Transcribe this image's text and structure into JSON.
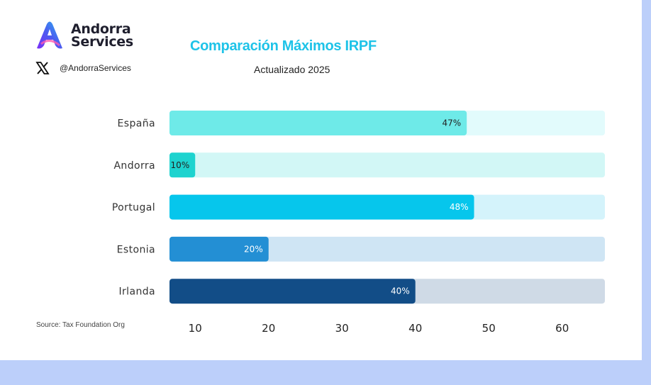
{
  "brand": {
    "line1": "Andorra",
    "line2": "Services",
    "handle": "@AndorraServices"
  },
  "source": "Source: Tax Foundation Org",
  "chart_data": {
    "type": "bar",
    "orientation": "horizontal",
    "title": "Comparación Máximos IRPF",
    "subtitle": "Actualizado 2025",
    "categories": [
      "España",
      "Andorra",
      "Portugal",
      "Estonia",
      "Irlanda"
    ],
    "values": [
      47,
      10,
      48,
      20,
      40
    ],
    "value_labels": [
      "47%",
      "10%",
      "48%",
      "20%",
      "40%"
    ],
    "x_ticks": [
      10,
      20,
      30,
      40,
      50,
      60
    ],
    "bar_colors": [
      "#6eeae8",
      "#1ed3cf",
      "#06c6ec",
      "#238fd4",
      "#124d87"
    ],
    "track_colors": [
      "#e2fbfc",
      "#d2f7f6",
      "#d4f3fb",
      "#cfe5f4",
      "#cfdae6"
    ],
    "label_colors": [
      "#222222",
      "#222222",
      "#ffffff",
      "#ffffff",
      "#ffffff"
    ],
    "grid": false,
    "legend": "none"
  }
}
